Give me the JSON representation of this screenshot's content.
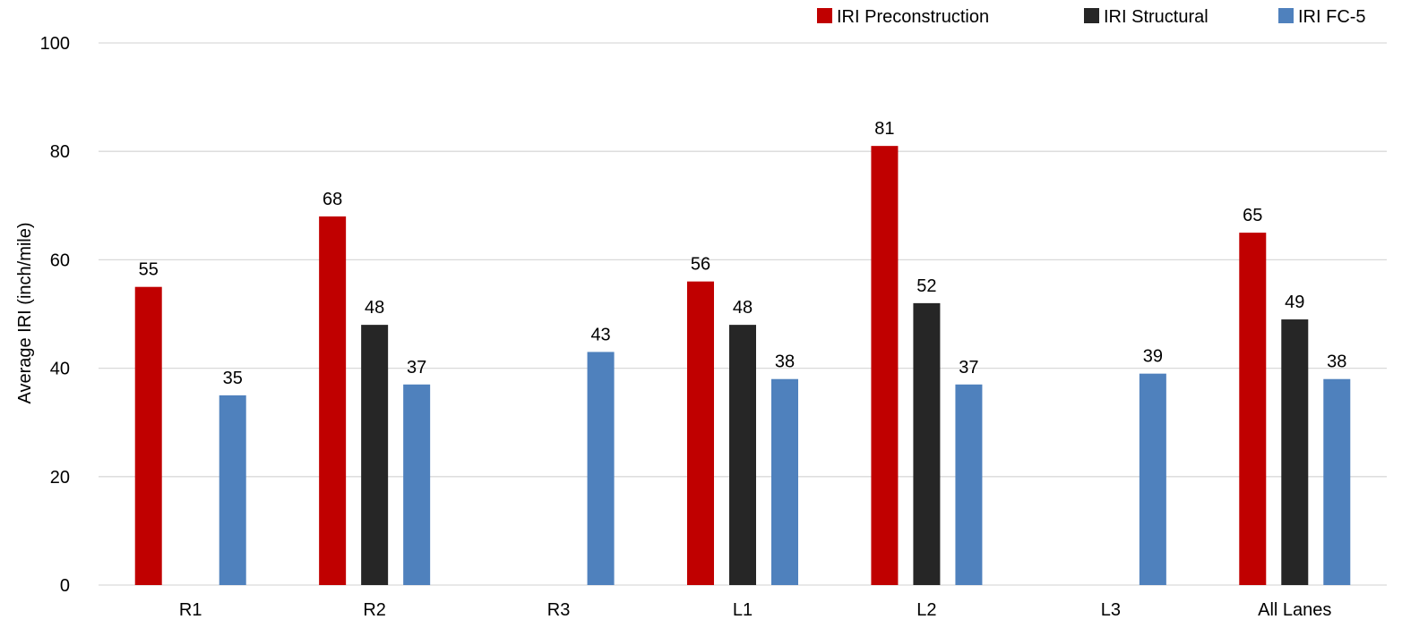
{
  "chart_data": {
    "type": "bar",
    "title": "",
    "xlabel": "",
    "ylabel": "Average IRI (inch/mile)",
    "ylim": [
      0,
      100
    ],
    "yticks": [
      0,
      20,
      40,
      60,
      80,
      100
    ],
    "grid": true,
    "legend_position": "top-right",
    "categories": [
      "R1",
      "R2",
      "R3",
      "L1",
      "L2",
      "L3",
      "All Lanes"
    ],
    "series": [
      {
        "name": "IRI Preconstruction",
        "color": "#c00000",
        "values": [
          55,
          68,
          null,
          56,
          81,
          null,
          65
        ],
        "labels": [
          "55",
          "68",
          "",
          "56",
          "81",
          "",
          "65"
        ]
      },
      {
        "name": "IRI Structural",
        "color": "#262626",
        "values": [
          null,
          48,
          null,
          48,
          52,
          null,
          49
        ],
        "labels": [
          "",
          "48",
          "",
          "48",
          "52",
          "",
          "49"
        ]
      },
      {
        "name": "IRI FC-5",
        "color": "#4f81bd",
        "values": [
          35,
          37,
          43,
          38,
          37,
          39,
          38
        ],
        "labels": [
          "35",
          "37",
          "43",
          "38",
          "37",
          "39",
          "38"
        ]
      }
    ]
  }
}
